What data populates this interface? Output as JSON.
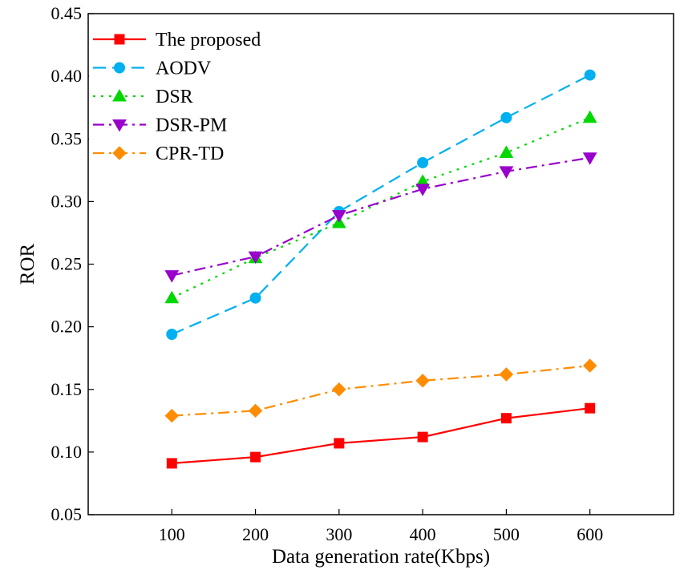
{
  "chart_data": {
    "type": "line",
    "title": "",
    "xlabel": "Data generation rate(Kbps)",
    "ylabel": "ROR",
    "x": [
      100,
      200,
      300,
      400,
      500,
      600
    ],
    "x_tick_labels": [
      "100",
      "200",
      "300",
      "400",
      "500",
      "600"
    ],
    "xlim": [
      0,
      700
    ],
    "ylim": [
      0.05,
      0.45
    ],
    "y_ticks": [
      0.05,
      0.1,
      0.15,
      0.2,
      0.25,
      0.3,
      0.35,
      0.4,
      0.45
    ],
    "y_tick_labels": [
      "0.05",
      "0.10",
      "0.15",
      "0.20",
      "0.25",
      "0.30",
      "0.35",
      "0.40",
      "0.45"
    ],
    "grid": false,
    "legend_position": "top-left",
    "series": [
      {
        "name": "The proposed",
        "values": [
          0.091,
          0.096,
          0.107,
          0.112,
          0.127,
          0.135
        ],
        "color": "#ff0000",
        "marker": "square",
        "dash": "solid"
      },
      {
        "name": "AODV",
        "values": [
          0.194,
          0.223,
          0.292,
          0.331,
          0.367,
          0.401
        ],
        "color": "#00b0f0",
        "marker": "circle",
        "dash": "dash"
      },
      {
        "name": "DSR",
        "values": [
          0.223,
          0.255,
          0.283,
          0.316,
          0.339,
          0.367
        ],
        "color": "#00d800",
        "marker": "triangle-up",
        "dash": "dot"
      },
      {
        "name": "DSR-PM",
        "values": [
          0.241,
          0.256,
          0.289,
          0.31,
          0.324,
          0.335
        ],
        "color": "#9900cc",
        "marker": "triangle-down",
        "dash": "dashdot"
      },
      {
        "name": "CPR-TD",
        "values": [
          0.129,
          0.133,
          0.15,
          0.157,
          0.162,
          0.169
        ],
        "color": "#ff8c00",
        "marker": "diamond",
        "dash": "dashdot"
      }
    ]
  }
}
